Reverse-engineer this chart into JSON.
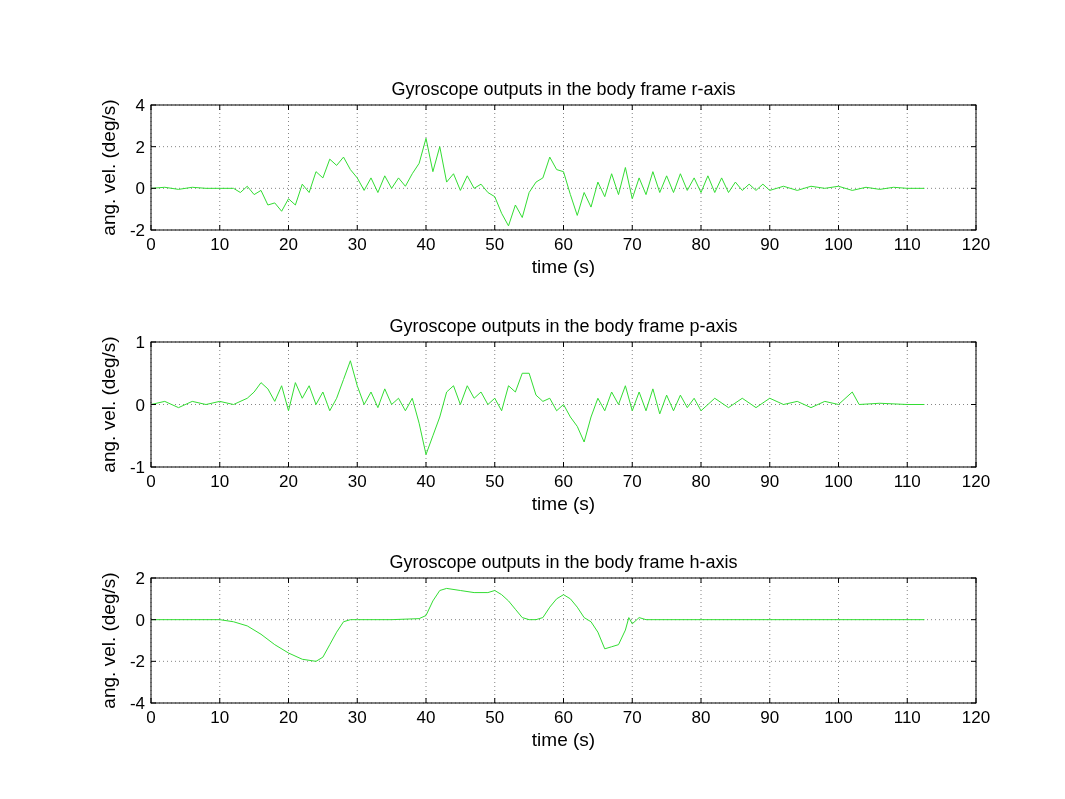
{
  "chart_data": [
    {
      "type": "line",
      "title": "Gyroscope outputs in the body frame r-axis",
      "xlabel": "time (s)",
      "ylabel": "ang. vel. (deg/s)",
      "xlim": [
        0,
        120
      ],
      "xticks": [
        0,
        10,
        20,
        30,
        40,
        50,
        60,
        70,
        80,
        90,
        100,
        110,
        120
      ],
      "ylim": [
        -2,
        4
      ],
      "yticks": [
        -2,
        0,
        2,
        4
      ],
      "grid": true,
      "line_style": "solid",
      "series": [
        {
          "color": "#33dd33",
          "x": [
            0,
            2,
            4,
            6,
            8,
            10,
            12,
            13,
            14,
            15,
            16,
            17,
            18,
            19,
            20,
            21,
            22,
            23,
            24,
            25,
            26,
            27,
            28,
            29,
            30,
            31,
            32,
            33,
            34,
            35,
            36,
            37,
            38,
            39,
            40,
            41,
            42,
            43,
            44,
            45,
            46,
            47,
            48,
            49,
            50,
            51,
            52,
            53,
            54,
            55,
            56,
            57,
            58,
            59,
            60,
            61,
            62,
            63,
            64,
            65,
            66,
            67,
            68,
            69,
            70,
            71,
            72,
            73,
            74,
            75,
            76,
            77,
            78,
            79,
            80,
            81,
            82,
            83,
            84,
            85,
            86,
            87,
            88,
            89,
            90,
            92,
            94,
            96,
            98,
            100,
            102,
            104,
            106,
            108,
            110,
            112.5
          ],
          "values": [
            0,
            0.05,
            -0.05,
            0.05,
            0,
            0,
            0,
            -0.2,
            0.1,
            -0.3,
            -0.1,
            -0.8,
            -0.7,
            -1.1,
            -0.5,
            -0.8,
            0.2,
            -0.2,
            0.8,
            0.5,
            1.4,
            1.1,
            1.5,
            0.9,
            0.5,
            -0.1,
            0.5,
            -0.2,
            0.6,
            0,
            0.5,
            0.1,
            0.7,
            1.2,
            2.4,
            0.8,
            2,
            0.3,
            0.7,
            -0.1,
            0.6,
            0,
            0.2,
            -0.2,
            -0.4,
            -1.2,
            -1.8,
            -0.8,
            -1.4,
            -0.2,
            0.3,
            0.5,
            1.5,
            0.9,
            0.8,
            -0.3,
            -1.3,
            -0.2,
            -0.9,
            0.3,
            -0.4,
            0.7,
            -0.3,
            1,
            -0.5,
            0.5,
            -0.3,
            0.8,
            -0.2,
            0.6,
            -0.2,
            0.7,
            -0.1,
            0.5,
            -0.2,
            0.6,
            -0.2,
            0.5,
            -0.2,
            0.3,
            -0.1,
            0.2,
            -0.1,
            0.2,
            -0.1,
            0.1,
            -0.1,
            0.1,
            0,
            0.1,
            -0.1,
            0.05,
            -0.05,
            0.05,
            0,
            0
          ]
        }
      ]
    },
    {
      "type": "line",
      "title": "Gyroscope outputs in the body frame p-axis",
      "xlabel": "time (s)",
      "ylabel": "ang. vel. (deg/s)",
      "xlim": [
        0,
        120
      ],
      "xticks": [
        0,
        10,
        20,
        30,
        40,
        50,
        60,
        70,
        80,
        90,
        100,
        110,
        120
      ],
      "ylim": [
        -1,
        1
      ],
      "yticks": [
        -1,
        0,
        1
      ],
      "grid": true,
      "line_style": "solid",
      "series": [
        {
          "color": "#33dd33",
          "x": [
            0,
            2,
            4,
            6,
            8,
            10,
            12,
            14,
            15,
            16,
            17,
            18,
            19,
            20,
            21,
            22,
            23,
            24,
            25,
            26,
            27,
            28,
            29,
            30,
            31,
            32,
            33,
            34,
            35,
            36,
            37,
            38,
            39,
            40,
            41,
            42,
            43,
            44,
            45,
            46,
            47,
            48,
            49,
            50,
            51,
            52,
            53,
            54,
            55,
            56,
            57,
            58,
            59,
            60,
            61,
            62,
            63,
            64,
            65,
            66,
            67,
            68,
            69,
            70,
            71,
            72,
            73,
            74,
            75,
            76,
            77,
            78,
            79,
            80,
            82,
            84,
            86,
            88,
            90,
            92,
            94,
            96,
            98,
            100,
            102,
            103,
            106,
            110,
            112.5
          ],
          "values": [
            0,
            0.05,
            -0.05,
            0.05,
            0,
            0.05,
            0,
            0.1,
            0.2,
            0.35,
            0.25,
            0.05,
            0.3,
            -0.1,
            0.35,
            0.1,
            0.3,
            0,
            0.2,
            -0.1,
            0.1,
            0.4,
            0.7,
            0.3,
            0,
            0.2,
            -0.05,
            0.25,
            0,
            0.1,
            -0.1,
            0.1,
            -0.3,
            -0.8,
            -0.5,
            -0.2,
            0.2,
            0.3,
            0,
            0.3,
            0.1,
            0.2,
            0,
            0.1,
            -0.1,
            0.3,
            0.2,
            0.5,
            0.5,
            0.15,
            0.05,
            0.1,
            -0.1,
            0,
            -0.2,
            -0.35,
            -0.6,
            -0.2,
            0.1,
            -0.1,
            0.2,
            0,
            0.3,
            -0.1,
            0.2,
            -0.1,
            0.25,
            -0.15,
            0.15,
            -0.1,
            0.15,
            -0.05,
            0.1,
            -0.1,
            0.1,
            -0.05,
            0.1,
            -0.05,
            0.1,
            0,
            0.05,
            -0.05,
            0.05,
            0,
            0.2,
            0,
            0.02,
            0,
            0
          ]
        }
      ]
    },
    {
      "type": "line",
      "title": "Gyroscope outputs in the body frame h-axis",
      "xlabel": "time (s)",
      "ylabel": "ang. vel. (deg/s)",
      "xlim": [
        0,
        120
      ],
      "xticks": [
        0,
        10,
        20,
        30,
        40,
        50,
        60,
        70,
        80,
        90,
        100,
        110,
        120
      ],
      "ylim": [
        -4,
        2
      ],
      "yticks": [
        -4,
        -2,
        0,
        2
      ],
      "grid": true,
      "line_style": "solid",
      "series": [
        {
          "color": "#33dd33",
          "x": [
            0,
            10,
            12,
            14,
            16,
            18,
            20,
            22,
            24,
            25,
            26,
            27,
            28,
            29,
            30,
            35,
            39,
            40,
            41,
            42,
            43,
            45,
            47,
            49,
            50,
            51,
            52,
            53,
            54,
            55,
            56,
            57,
            58,
            59,
            60,
            61,
            62,
            63,
            64,
            65,
            66,
            67,
            68,
            69,
            69.5,
            70,
            71,
            72,
            80,
            112.5
          ],
          "values": [
            0,
            0,
            -0.1,
            -0.3,
            -0.7,
            -1.2,
            -1.6,
            -1.9,
            -2,
            -1.8,
            -1.2,
            -0.6,
            -0.1,
            0,
            0,
            0,
            0.05,
            0.2,
            0.9,
            1.4,
            1.5,
            1.4,
            1.3,
            1.3,
            1.4,
            1.2,
            0.9,
            0.5,
            0.1,
            0,
            0,
            0.1,
            0.6,
            1,
            1.2,
            1,
            0.6,
            0.1,
            -0.1,
            -0.6,
            -1.4,
            -1.3,
            -1.2,
            -0.5,
            0.1,
            -0.2,
            0.1,
            0,
            0,
            0
          ]
        }
      ]
    }
  ]
}
